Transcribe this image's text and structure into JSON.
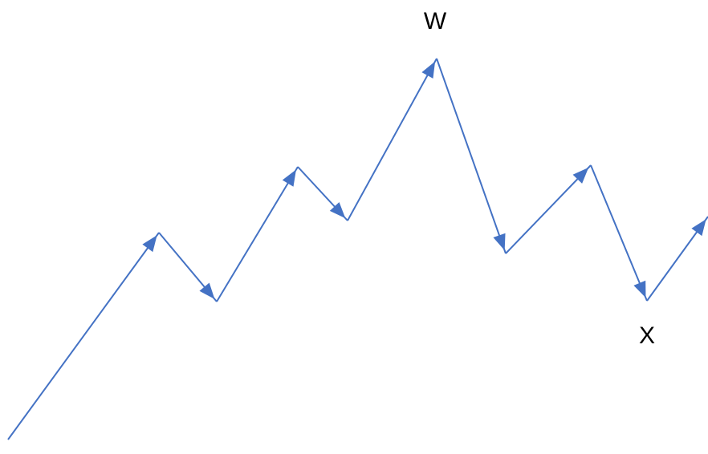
{
  "colors": {
    "arrow": "#4472C4",
    "label": "#000000",
    "background": "#ffffff"
  },
  "labels": {
    "peak": "W",
    "trough": "X"
  }
}
